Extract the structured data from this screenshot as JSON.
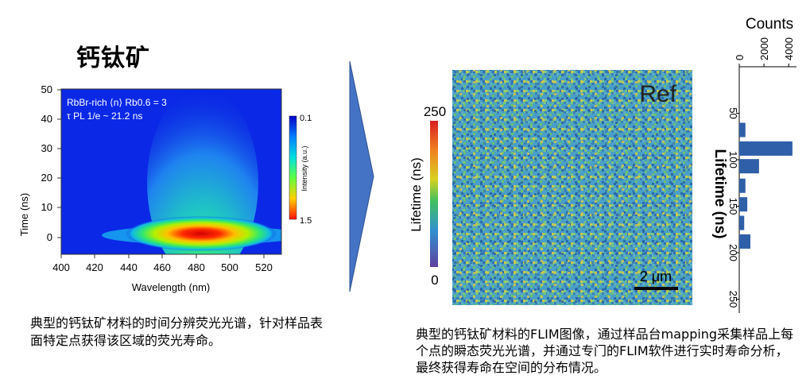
{
  "title": "钙钛矿",
  "caption_left": "典型的钙钛矿材料的时间分辨荧光光谱，针对样品表面特定点获得该区域的荧光寿命。",
  "caption_right": "典型的钙钛矿材料的FLIM图像，通过样品台mapping采集样品上每个点的瞬态荧光光谱，并通过专门的FLIM软件进行实时寿命分析，最终获得寿命在空间的分布情况。",
  "colors": {
    "arrow": "#4472c4",
    "bar": "#2f5fa8"
  },
  "chart_data": [
    {
      "type": "heatmap",
      "title": "",
      "xlabel": "Wavelength (nm)",
      "ylabel": "Time (ns)",
      "xticks": [
        "400",
        "420",
        "440",
        "460",
        "480",
        "500",
        "520"
      ],
      "yticks": [
        "0",
        "10",
        "20",
        "30",
        "40",
        "50"
      ],
      "xlim": [
        400,
        530
      ],
      "ylim": [
        -5,
        50
      ],
      "annotation_line1": "RbBr-rich ⟨n⟩ Rb0.6 = 3",
      "annotation_line2": "τ PL 1/e ~ 21.2 ns",
      "colorbar_label": "Intensity (a.u.)",
      "colorbar_top": "0.1",
      "colorbar_bottom": "1.5",
      "peak_wavelength": 475
    },
    {
      "type": "heatmap",
      "title": "",
      "label": "Ref",
      "colorbar_label": "Lifetime (ns)",
      "colorbar_top": "250",
      "colorbar_bottom": "0",
      "scalebar": "2 μm"
    },
    {
      "type": "bar",
      "orientation": "horizontal",
      "title": "",
      "xlabel": "Counts",
      "ylabel": "Lifetime (ns)",
      "xticks": [
        "0",
        "2000",
        "4000"
      ],
      "yticks": [
        "50",
        "100",
        "150",
        "200",
        "250"
      ],
      "xlim": [
        0,
        4500
      ],
      "ylim": [
        0,
        265
      ],
      "bars": [
        {
          "lifetime": 68,
          "count": 500
        },
        {
          "lifetime": 88,
          "count": 4300
        },
        {
          "lifetime": 107,
          "count": 1600
        },
        {
          "lifetime": 128,
          "count": 500
        },
        {
          "lifetime": 148,
          "count": 650
        },
        {
          "lifetime": 168,
          "count": 400
        },
        {
          "lifetime": 188,
          "count": 900
        }
      ]
    }
  ]
}
